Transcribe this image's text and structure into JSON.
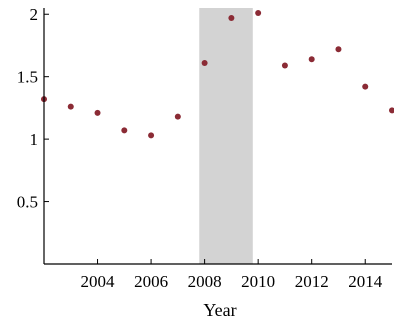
{
  "chart_data": {
    "type": "scatter",
    "title": "",
    "xlabel": "Year",
    "ylabel": "",
    "xlim": [
      2002,
      2015
    ],
    "ylim": [
      0,
      2.05
    ],
    "x_ticks": [
      2004,
      2006,
      2008,
      2010,
      2012,
      2014
    ],
    "y_ticks": [
      0.5,
      1,
      1.5,
      2
    ],
    "y_tick_labels": [
      "0.5",
      "1",
      "1.5",
      "2"
    ],
    "grid": false,
    "legend": "none",
    "shaded_region": {
      "x_start": 2007.8,
      "x_end": 2009.8,
      "color": "#d3d3d3"
    },
    "marker_color": "#8b2b35",
    "series": [
      {
        "x": [
          2002,
          2003,
          2004,
          2005,
          2006,
          2007,
          2008,
          2009,
          2010,
          2011,
          2012,
          2013,
          2014,
          2015
        ],
        "y": [
          1.32,
          1.26,
          1.21,
          1.07,
          1.03,
          1.18,
          1.61,
          1.97,
          2.01,
          1.59,
          1.64,
          1.72,
          1.42,
          1.23
        ]
      }
    ]
  }
}
